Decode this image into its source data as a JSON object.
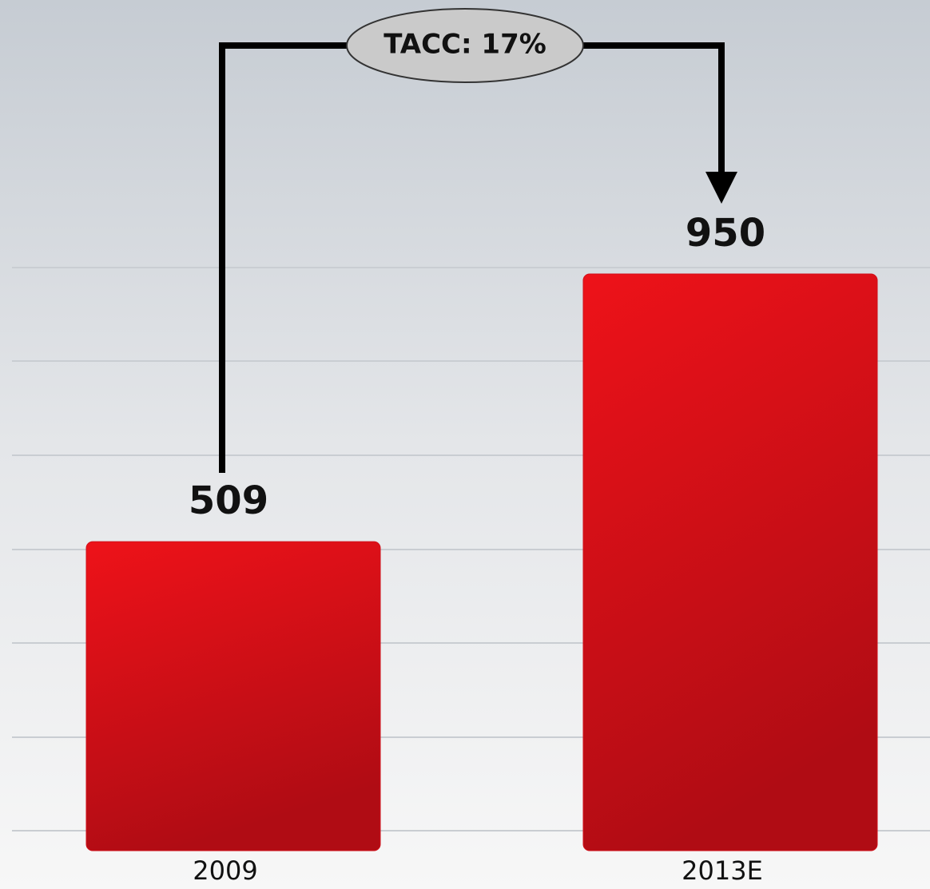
{
  "chart_data": {
    "type": "bar",
    "categories": [
      "2009",
      "2013E"
    ],
    "values": [
      509,
      950
    ],
    "color": "#d0101a",
    "ylim": [
      0,
      1000
    ],
    "annotation": "TACC: 17%"
  }
}
